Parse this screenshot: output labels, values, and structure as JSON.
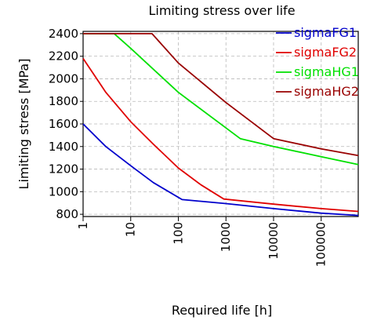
{
  "chart_data": {
    "type": "line",
    "title": "Limiting stress over life",
    "xlabel": "Required life [h]",
    "ylabel": "Limiting stress [MPa]",
    "x_scale": "log",
    "xlim": [
      1,
      600000
    ],
    "ylim": [
      780,
      2420
    ],
    "x_ticks": [
      1,
      10,
      100,
      1000,
      10000,
      100000
    ],
    "x_tick_labels": [
      "1",
      "10",
      "100",
      "1000",
      "10000",
      "100000"
    ],
    "y_ticks": [
      800,
      1000,
      1200,
      1400,
      1600,
      1800,
      2000,
      2200,
      2400
    ],
    "y_tick_labels": [
      "800",
      "1000",
      "1200",
      "1400",
      "1600",
      "1800",
      "2000",
      "2200",
      "2400"
    ],
    "grid": true,
    "legend_position": "top-right",
    "series": [
      {
        "name": "sigmaFG1",
        "color": "#0000cc",
        "x": [
          1,
          3,
          10,
          30,
          120,
          1000,
          10000,
          100000,
          600000
        ],
        "y": [
          1600,
          1400,
          1230,
          1080,
          930,
          895,
          850,
          810,
          790
        ]
      },
      {
        "name": "sigmaFG2",
        "color": "#e00000",
        "x": [
          1,
          3,
          10,
          30,
          100,
          300,
          900,
          10000,
          100000,
          600000
        ],
        "y": [
          2180,
          1880,
          1620,
          1420,
          1210,
          1060,
          935,
          890,
          850,
          825
        ]
      },
      {
        "name": "sigmaHG1",
        "color": "#00e000",
        "x": [
          1,
          4.5,
          10,
          100,
          2000,
          10000,
          100000,
          600000
        ],
        "y": [
          2400,
          2400,
          2270,
          1880,
          1470,
          1400,
          1310,
          1240
        ]
      },
      {
        "name": "sigmaHG2",
        "color": "#990000",
        "x": [
          1,
          28,
          100,
          1000,
          10000,
          100000,
          600000
        ],
        "y": [
          2400,
          2400,
          2140,
          1790,
          1470,
          1380,
          1320
        ]
      }
    ]
  }
}
